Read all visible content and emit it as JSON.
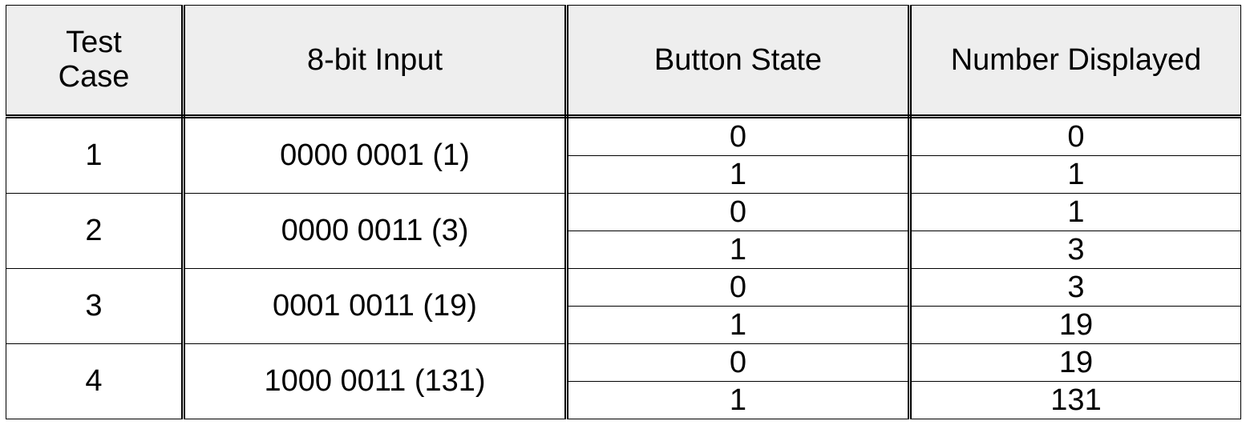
{
  "headers": {
    "test_case_line1": "Test",
    "test_case_line2": "Case",
    "input": "8-bit Input",
    "button_state": "Button State",
    "number_displayed": "Number Displayed"
  },
  "rows": [
    {
      "test_case": "1",
      "input": "0000 0001 (1)",
      "states": [
        {
          "button": "0",
          "displayed": "0"
        },
        {
          "button": "1",
          "displayed": "1"
        }
      ]
    },
    {
      "test_case": "2",
      "input": "0000 0011 (3)",
      "states": [
        {
          "button": "0",
          "displayed": "1"
        },
        {
          "button": "1",
          "displayed": "3"
        }
      ]
    },
    {
      "test_case": "3",
      "input": "0001 0011 (19)",
      "states": [
        {
          "button": "0",
          "displayed": "3"
        },
        {
          "button": "1",
          "displayed": "19"
        }
      ]
    },
    {
      "test_case": "4",
      "input": "1000 0011 (131)",
      "states": [
        {
          "button": "0",
          "displayed": "19"
        },
        {
          "button": "1",
          "displayed": "131"
        }
      ]
    }
  ]
}
